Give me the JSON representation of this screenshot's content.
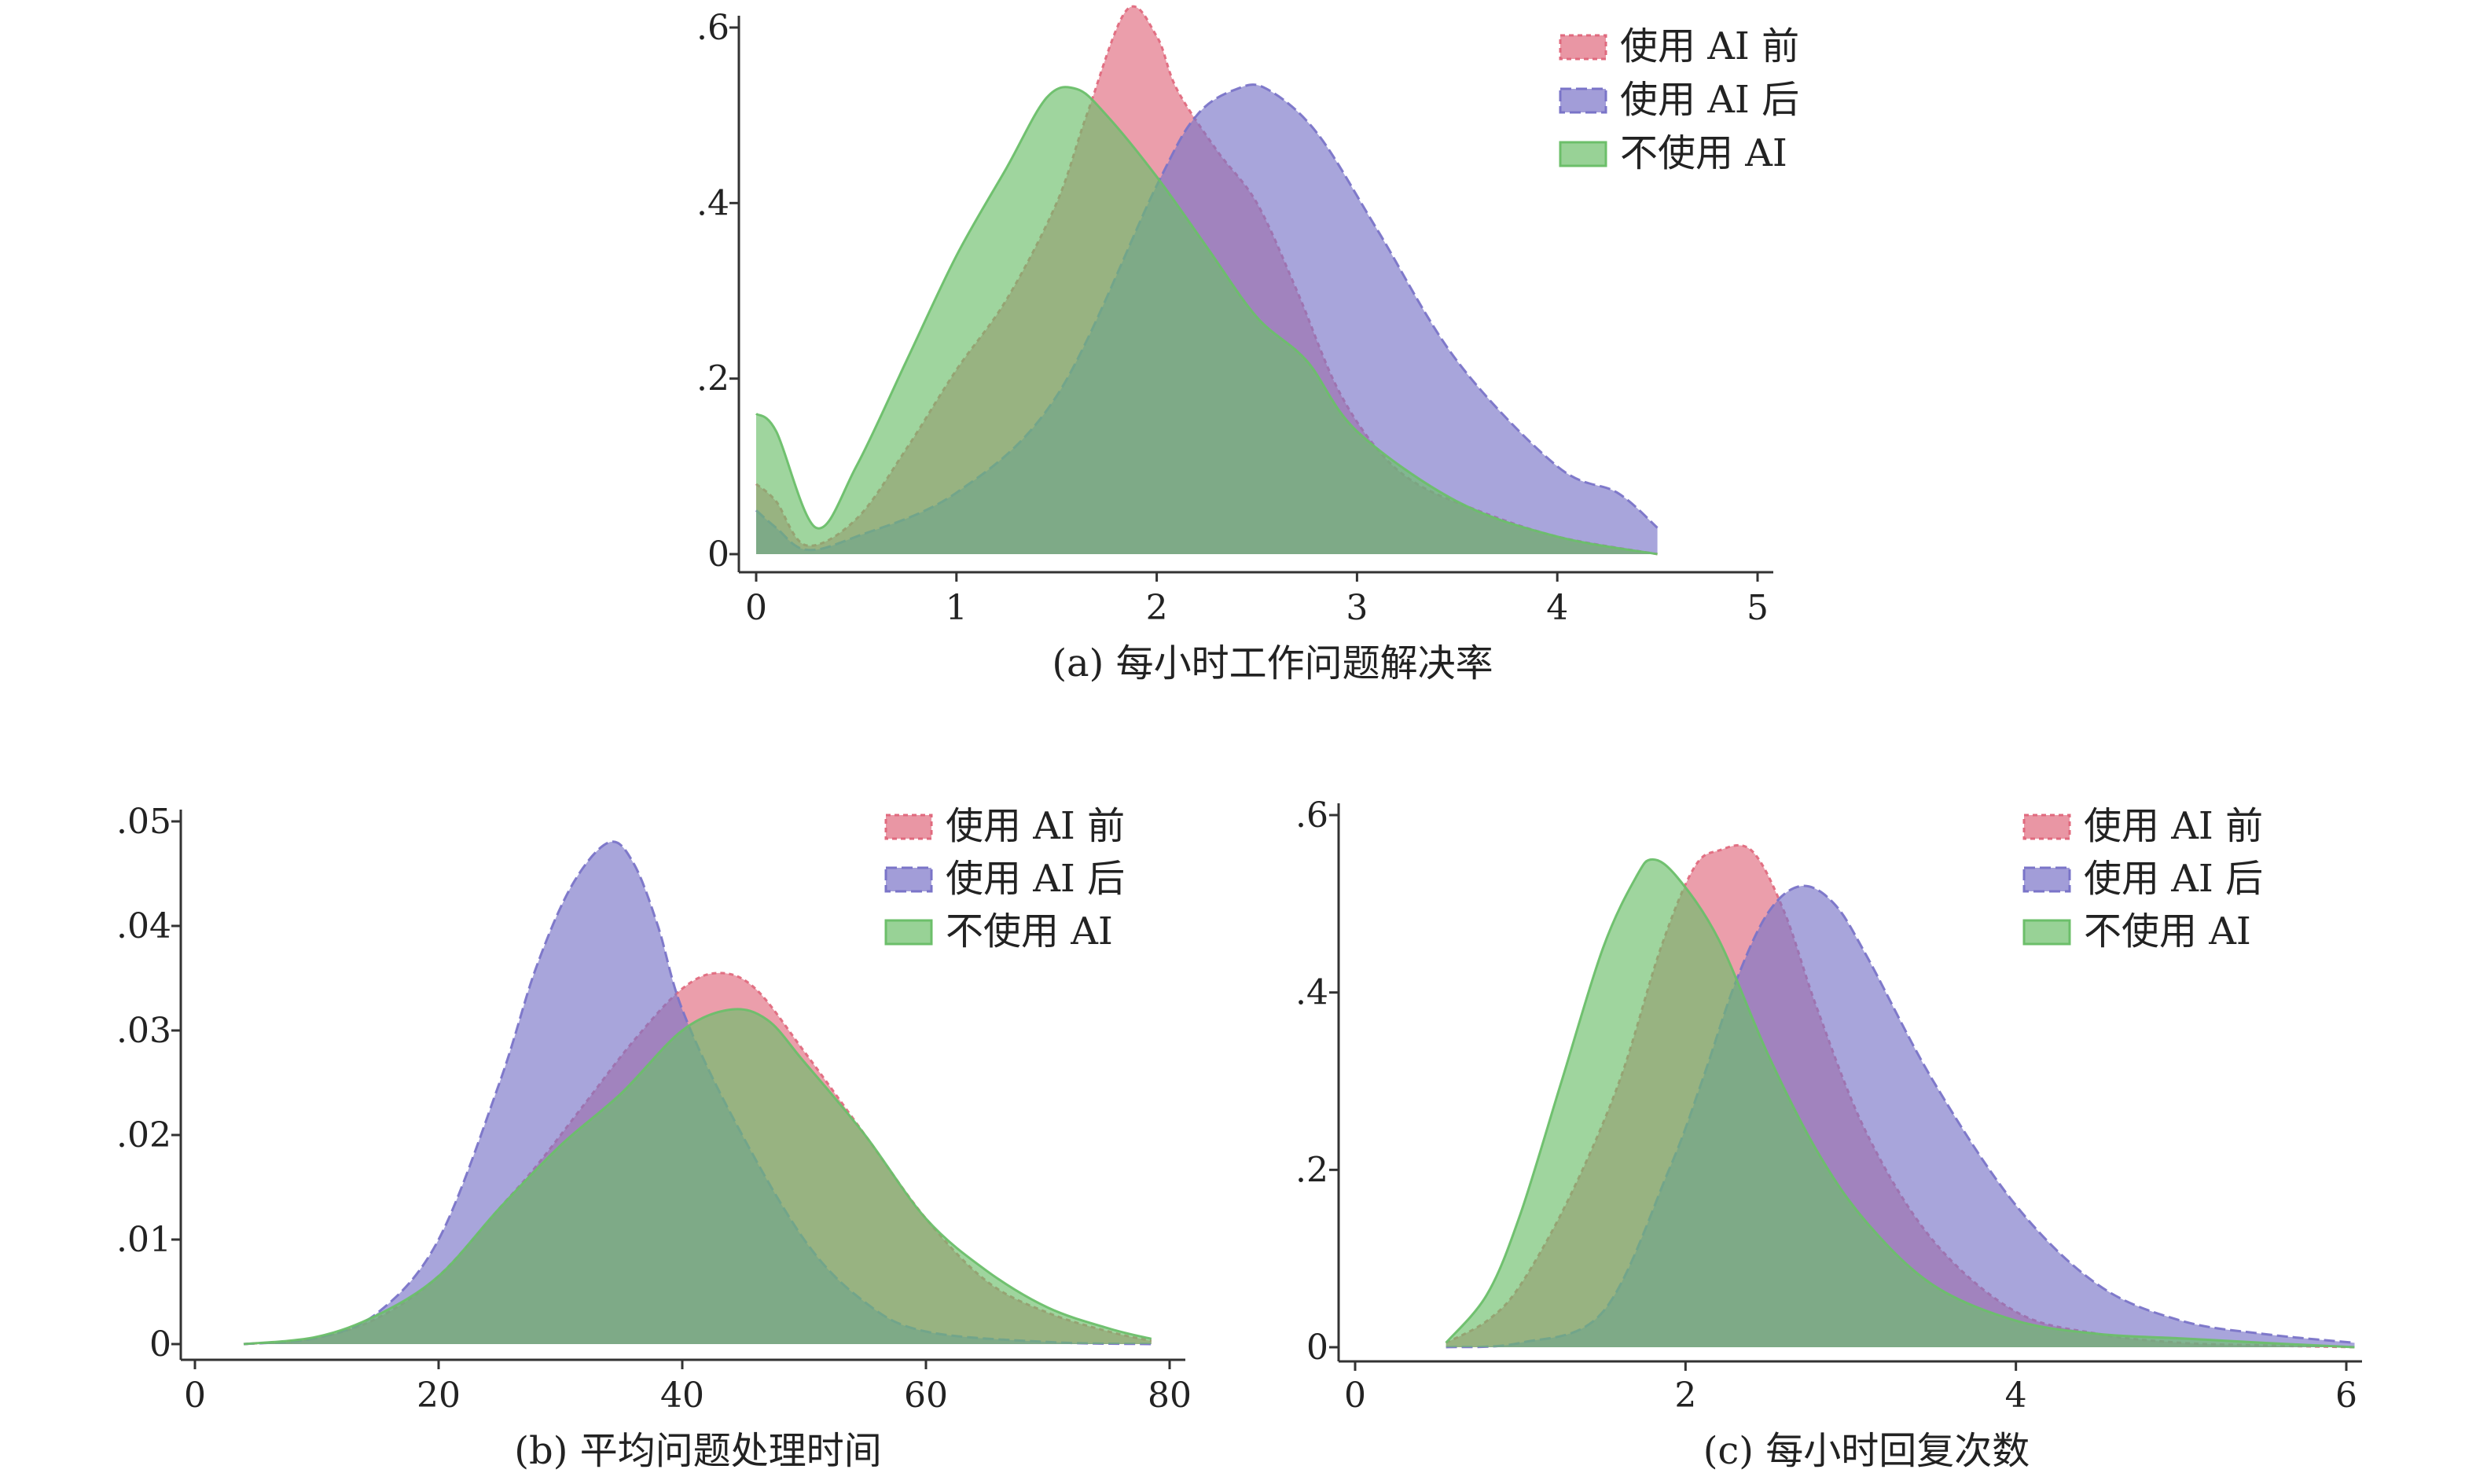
{
  "colors": {
    "before": "#e06a7e",
    "after": "#7a74c8",
    "none": "#6cbf6a"
  },
  "legend": [
    "使用 AI 前",
    "使用 AI 后",
    "不使用 AI"
  ],
  "chart_data": [
    {
      "type": "area",
      "caption": "(a) 每小时工作问题解决率",
      "xlim": [
        0,
        5
      ],
      "ylim": [
        0,
        0.6
      ],
      "xticks": [
        0,
        1,
        2,
        3,
        4,
        5
      ],
      "xtick_labels": [
        "0",
        "1",
        "2",
        "3",
        "4",
        "5"
      ],
      "yticks": [
        0,
        0.2,
        0.4,
        0.6
      ],
      "ytick_labels": [
        "0",
        ".2",
        ".4",
        ".6"
      ],
      "legend_position": "top-right",
      "series": [
        {
          "name": "使用 AI 前",
          "color_key": "before",
          "x": [
            0,
            0.1,
            0.25,
            0.5,
            0.75,
            1,
            1.25,
            1.5,
            1.65,
            1.85,
            2,
            2.1,
            2.3,
            2.5,
            2.7,
            2.9,
            3.1,
            3.3,
            3.6,
            4,
            4.5
          ],
          "y": [
            0.08,
            0.06,
            0.01,
            0.04,
            0.12,
            0.21,
            0.29,
            0.4,
            0.5,
            0.62,
            0.59,
            0.53,
            0.46,
            0.4,
            0.3,
            0.19,
            0.12,
            0.08,
            0.05,
            0.02,
            0.0
          ]
        },
        {
          "name": "使用 AI 后",
          "color_key": "after",
          "x": [
            0,
            0.1,
            0.25,
            0.5,
            1,
            1.5,
            2,
            2.2,
            2.4,
            2.55,
            2.8,
            3.1,
            3.5,
            4,
            4.3,
            4.5
          ],
          "y": [
            0.05,
            0.03,
            0.005,
            0.02,
            0.07,
            0.18,
            0.42,
            0.5,
            0.53,
            0.53,
            0.48,
            0.37,
            0.22,
            0.1,
            0.07,
            0.03
          ]
        },
        {
          "name": "不使用 AI",
          "color_key": "none",
          "x": [
            0,
            0.1,
            0.3,
            0.5,
            0.75,
            1,
            1.25,
            1.45,
            1.6,
            1.75,
            2,
            2.25,
            2.5,
            2.75,
            3,
            3.5,
            4,
            4.5
          ],
          "y": [
            0.16,
            0.14,
            0.03,
            0.1,
            0.22,
            0.34,
            0.44,
            0.52,
            0.53,
            0.5,
            0.43,
            0.35,
            0.27,
            0.22,
            0.14,
            0.06,
            0.02,
            0.0
          ]
        }
      ]
    },
    {
      "type": "area",
      "caption": "(b) 平均问题处理时间",
      "xlim": [
        0,
        80
      ],
      "ylim": [
        0,
        0.05
      ],
      "xticks": [
        0,
        20,
        40,
        60,
        80
      ],
      "xtick_labels": [
        "0",
        "20",
        "40",
        "60",
        "80"
      ],
      "yticks": [
        0,
        0.01,
        0.02,
        0.03,
        0.04,
        0.05
      ],
      "ytick_labels": [
        "0",
        ".01",
        ".02",
        ".03",
        ".04",
        ".05"
      ],
      "legend_position": "top-right",
      "series": [
        {
          "name": "使用 AI 前",
          "color_key": "before",
          "x": [
            4,
            10,
            15,
            20,
            25,
            28,
            32,
            36,
            40,
            43,
            46,
            50,
            55,
            60,
            65,
            70,
            75,
            78.5
          ],
          "y": [
            0,
            0.0006,
            0.0025,
            0.0065,
            0.013,
            0.017,
            0.023,
            0.029,
            0.034,
            0.0355,
            0.034,
            0.028,
            0.02,
            0.012,
            0.006,
            0.003,
            0.0012,
            0.0003
          ]
        },
        {
          "name": "使用 AI 后",
          "color_key": "after",
          "x": [
            4,
            10,
            15,
            20,
            25,
            28,
            31,
            34,
            36,
            38,
            40,
            44,
            50,
            55,
            60,
            70,
            78.5
          ],
          "y": [
            0,
            0.0006,
            0.003,
            0.01,
            0.025,
            0.036,
            0.044,
            0.048,
            0.046,
            0.04,
            0.032,
            0.022,
            0.01,
            0.004,
            0.0012,
            0.0002,
            0.0
          ]
        },
        {
          "name": "不使用 AI",
          "color_key": "none",
          "x": [
            4,
            10,
            15,
            20,
            25,
            30,
            35,
            40,
            44,
            47,
            50,
            55,
            60,
            65,
            70,
            75,
            78.5
          ],
          "y": [
            0,
            0.0007,
            0.0028,
            0.0065,
            0.013,
            0.019,
            0.024,
            0.03,
            0.032,
            0.031,
            0.027,
            0.02,
            0.012,
            0.007,
            0.0035,
            0.0015,
            0.0005
          ]
        }
      ]
    },
    {
      "type": "area",
      "caption": "(c) 每小时回复次数",
      "xlim": [
        0,
        6
      ],
      "ylim": [
        0,
        0.6
      ],
      "xticks": [
        0,
        2,
        4,
        6
      ],
      "xtick_labels": [
        "0",
        "2",
        "4",
        "6"
      ],
      "yticks": [
        0,
        0.2,
        0.4,
        0.6
      ],
      "ytick_labels": [
        "0",
        ".2",
        ".4",
        ".6"
      ],
      "legend_position": "top-right",
      "series": [
        {
          "name": "使用 AI 前",
          "color_key": "before",
          "x": [
            0.55,
            0.8,
            1,
            1.3,
            1.6,
            1.85,
            2.05,
            2.2,
            2.4,
            2.6,
            2.8,
            3.1,
            3.5,
            4,
            4.5,
            5,
            5.5,
            6.05
          ],
          "y": [
            0.005,
            0.03,
            0.07,
            0.17,
            0.3,
            0.45,
            0.54,
            0.56,
            0.56,
            0.49,
            0.38,
            0.24,
            0.12,
            0.04,
            0.015,
            0.005,
            0.002,
            0.0
          ]
        },
        {
          "name": "使用 AI 后",
          "color_key": "after",
          "x": [
            0.55,
            1,
            1.5,
            1.9,
            2.1,
            2.3,
            2.5,
            2.7,
            2.9,
            3.1,
            3.5,
            4,
            4.5,
            5,
            5.5,
            6.05
          ],
          "y": [
            0.0,
            0.005,
            0.04,
            0.2,
            0.3,
            0.41,
            0.49,
            0.52,
            0.5,
            0.44,
            0.3,
            0.16,
            0.07,
            0.03,
            0.015,
            0.005
          ]
        },
        {
          "name": "不使用 AI",
          "color_key": "none",
          "x": [
            0.55,
            0.8,
            1,
            1.25,
            1.5,
            1.7,
            1.8,
            1.95,
            2.2,
            2.5,
            2.8,
            3.1,
            3.5,
            4,
            4.5,
            5,
            5.5,
            6.05
          ],
          "y": [
            0.005,
            0.06,
            0.15,
            0.3,
            0.45,
            0.53,
            0.55,
            0.53,
            0.46,
            0.33,
            0.22,
            0.14,
            0.07,
            0.03,
            0.015,
            0.01,
            0.005,
            0.0
          ]
        }
      ]
    }
  ]
}
